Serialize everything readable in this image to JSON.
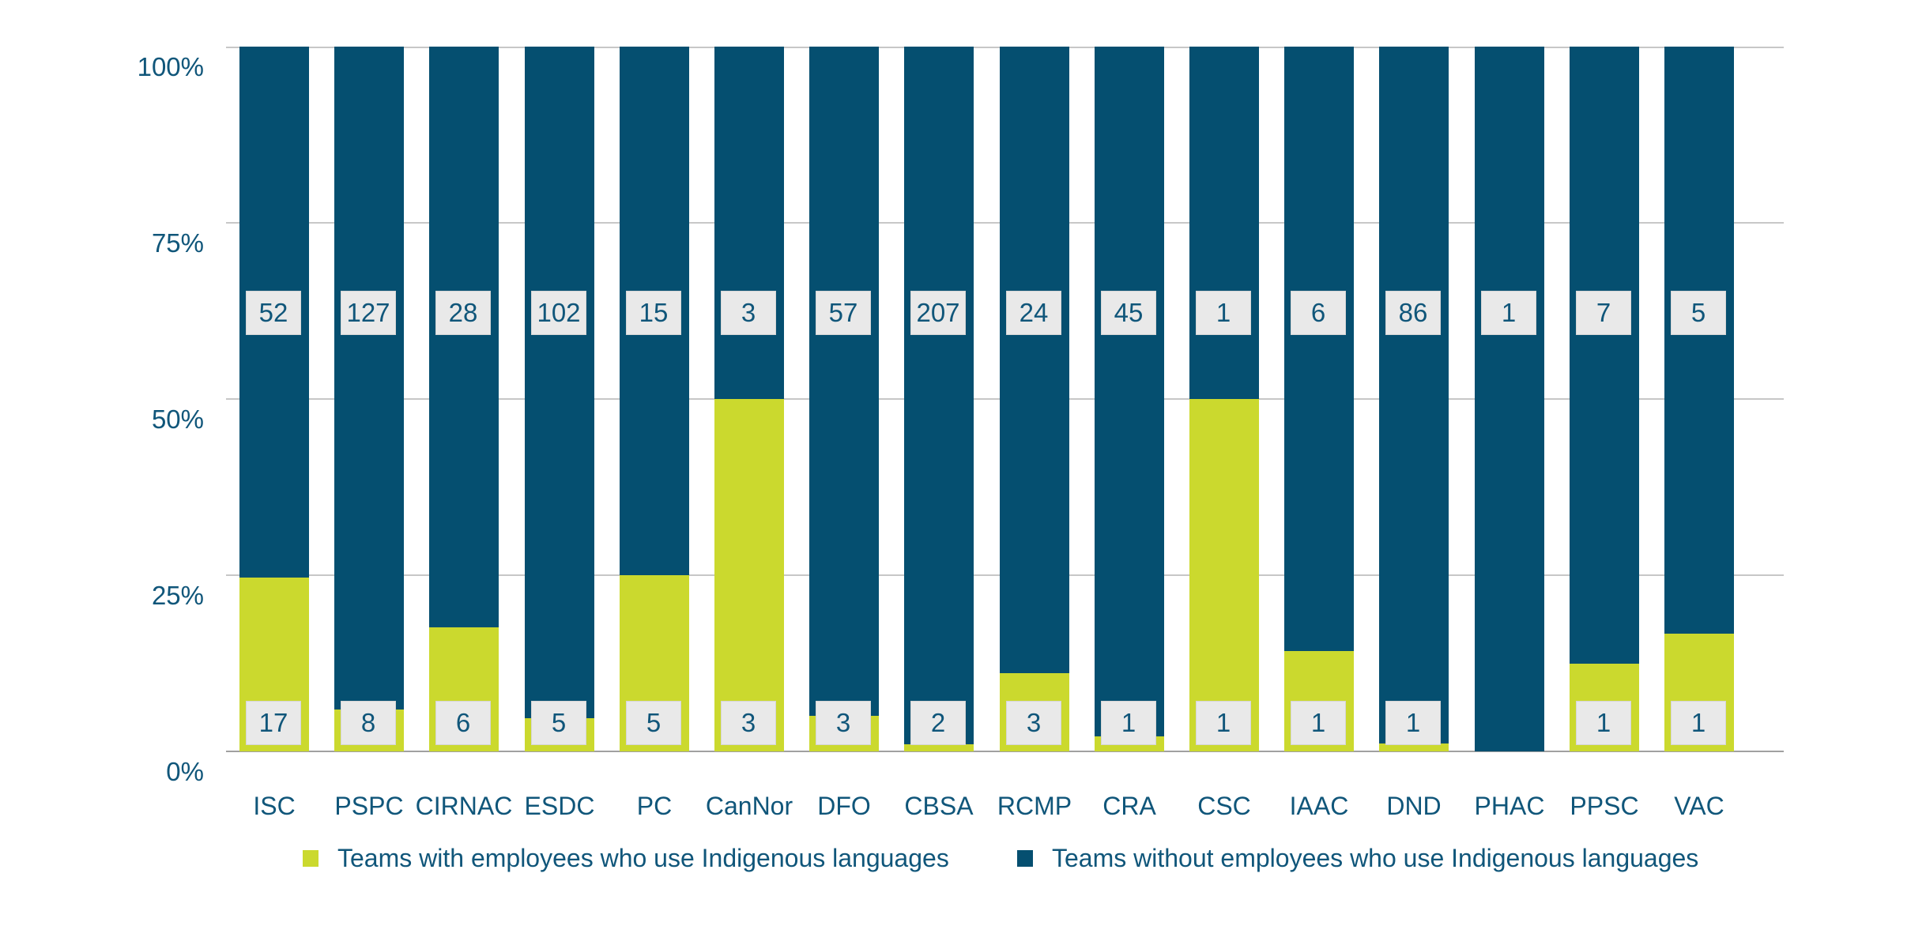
{
  "chart_data": {
    "type": "bar",
    "variant": "100-percent-stacked-column",
    "title": "",
    "categories": [
      "ISC",
      "PSPC",
      "CIRNAC",
      "ESDC",
      "PC",
      "CanNor",
      "DFO",
      "CBSA",
      "RCMP",
      "CRA",
      "CSC",
      "IAAC",
      "DND",
      "PHAC",
      "PPSC",
      "VAC"
    ],
    "series": [
      {
        "name": "Teams with employees who use Indigenous languages",
        "color": "#cbd92e",
        "values": [
          17,
          8,
          6,
          5,
          5,
          3,
          3,
          2,
          3,
          1,
          1,
          1,
          1,
          0,
          1,
          1
        ]
      },
      {
        "name": "Teams without employees who use Indigenous languages",
        "color": "#054f70",
        "values": [
          52,
          127,
          28,
          102,
          15,
          3,
          57,
          207,
          24,
          45,
          1,
          6,
          86,
          1,
          7,
          5
        ]
      }
    ],
    "y_axis": {
      "min": 0,
      "max": 100,
      "tick_labels": [
        "0%",
        "25%",
        "50%",
        "75%",
        "100%"
      ]
    },
    "grid": true,
    "legend_position": "bottom",
    "data_labels": "counts shown in gray boxes on each segment",
    "colors": {
      "count_label_bg": "#e9e9e9",
      "count_label_border": "#d6d6d6",
      "text": "#10567a",
      "gridline": "#c7c7c7",
      "axis_line": "#a0a0a0"
    }
  }
}
